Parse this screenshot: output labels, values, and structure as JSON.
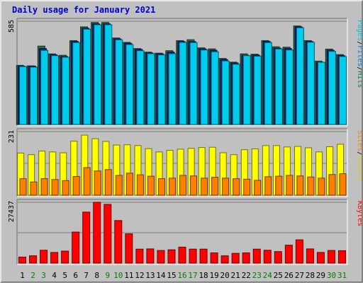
{
  "chart_data": {
    "type": "bar",
    "title": "Daily usage for January 2021",
    "title_color": "#0000cc",
    "days": [
      "1",
      "2",
      "3",
      "4",
      "5",
      "6",
      "7",
      "8",
      "9",
      "10",
      "11",
      "12",
      "13",
      "14",
      "15",
      "16",
      "17",
      "18",
      "19",
      "20",
      "21",
      "22",
      "23",
      "24",
      "25",
      "26",
      "27",
      "28",
      "29",
      "30",
      "31"
    ],
    "weekend_days": [
      2,
      3,
      9,
      10,
      16,
      17,
      23,
      24,
      30,
      31
    ],
    "weekday_color": "#000000",
    "weekend_color": "#008000",
    "panels": [
      {
        "id": "hits",
        "max_label": "585",
        "ymax": 585,
        "gridlines": [
          0.5
        ],
        "labels": [
          {
            "text": "Pages",
            "color": "#00c8dc"
          },
          {
            "text": "/",
            "color": "#000000"
          },
          {
            "text": "Files",
            "color": "#0080ff"
          },
          {
            "text": "/",
            "color": "#000000"
          },
          {
            "text": "Hits",
            "color": "#008060"
          }
        ],
        "series": [
          {
            "name": "Hits",
            "color": "#2a6e4a",
            "values": [
              335,
              332,
              444,
              400,
              392,
              475,
              553,
              578,
              578,
              490,
              465,
              430,
              410,
              404,
              418,
              475,
              480,
              434,
              428,
              374,
              353,
              400,
              398,
              475,
              440,
              438,
              558,
              475,
              359,
              427,
              396
            ]
          },
          {
            "name": "Files",
            "color": "#1a1a8c",
            "values": [
              330,
              330,
              430,
              395,
              385,
              470,
              545,
              570,
              570,
              485,
              460,
              425,
              405,
              400,
              410,
              470,
              470,
              428,
              420,
              368,
              348,
              392,
              393,
              470,
              432,
              430,
              553,
              470,
              352,
              420,
              390
            ]
          },
          {
            "name": "Pages",
            "color": "#00ccee",
            "values": [
              328,
              325,
              420,
              390,
              381,
              464,
              540,
              565,
              565,
              480,
              453,
              418,
              401,
              394,
              401,
              465,
              464,
              422,
              412,
              360,
              341,
              390,
              387,
              464,
              428,
              422,
              548,
              466,
              352,
              414,
              385
            ]
          }
        ]
      },
      {
        "id": "visits",
        "max_label": "231",
        "ymax": 231,
        "gridlines": [
          0.5
        ],
        "labels": [
          {
            "text": "Sites",
            "color": "#ff8000"
          },
          {
            "text": "/",
            "color": "#000000"
          },
          {
            "text": "Visits",
            "color": "#e0d000"
          }
        ],
        "series": [
          {
            "name": "Visits",
            "color": "#ffff00",
            "values": [
              153,
              147,
              160,
              157,
              154,
              196,
              218,
              205,
              195,
              182,
              183,
              180,
              169,
              157,
              163,
              167,
              170,
              173,
              174,
              154,
              147,
              165,
              168,
              180,
              180,
              175,
              177,
              172,
              157,
              176,
              185
            ]
          },
          {
            "name": "Sites",
            "color": "#ff8000",
            "values": [
              60,
              48,
              60,
              57,
              53,
              68,
              100,
              88,
              93,
              72,
              80,
              74,
              69,
              60,
              62,
              72,
              70,
              62,
              65,
              62,
              60,
              58,
              54,
              67,
              69,
              72,
              70,
              66,
              62,
              75,
              78
            ]
          }
        ]
      },
      {
        "id": "kbytes",
        "max_label": "27437",
        "ymax": 27437,
        "gridlines": [
          0.5
        ],
        "labels": [
          {
            "text": "KBytes",
            "color": "#ff0000"
          }
        ],
        "series": [
          {
            "name": "KBytes",
            "color": "#ff0000",
            "values": [
              2700,
              3300,
              5800,
              4800,
              5400,
              14000,
              23000,
              27437,
              26500,
              19200,
              13200,
              6300,
              6400,
              5700,
              6000,
              7200,
              6300,
              6300,
              4600,
              3300,
              4400,
              4600,
              6300,
              5800,
              5200,
              8100,
              10500,
              6400,
              4800,
              5700,
              5600
            ]
          }
        ]
      }
    ]
  }
}
